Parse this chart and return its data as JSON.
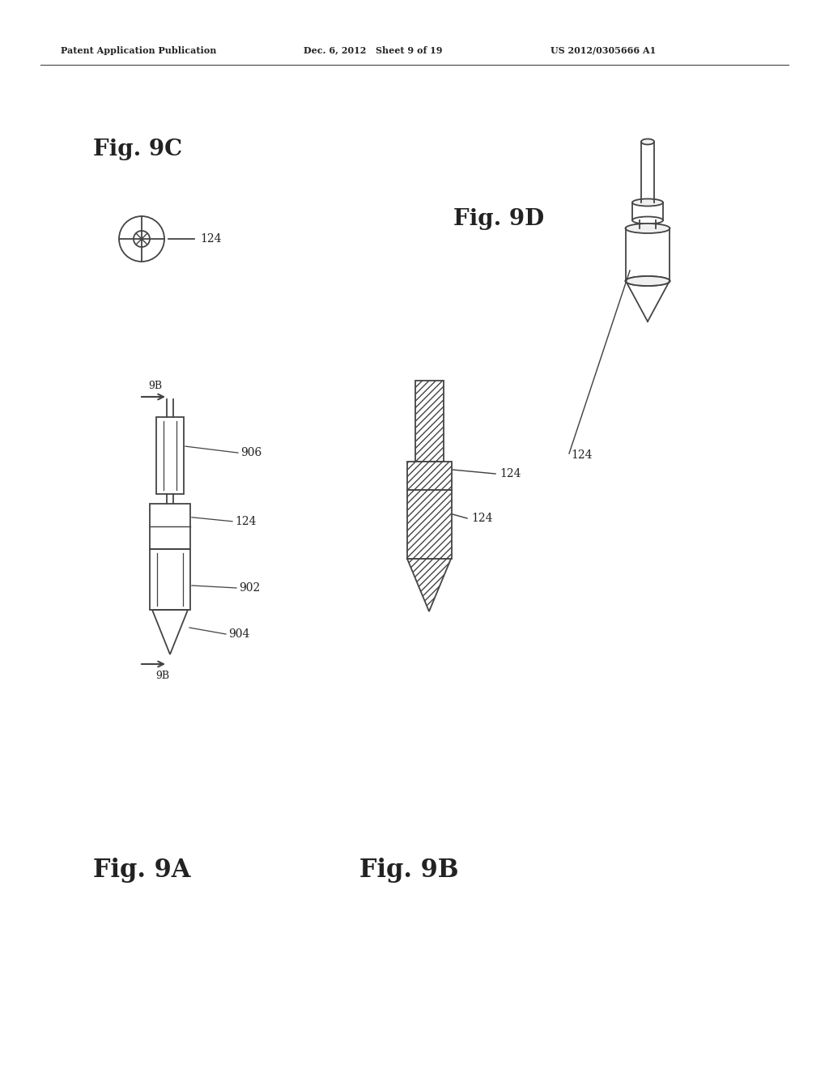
{
  "background_color": "#ffffff",
  "header_left": "Patent Application Publication",
  "header_mid": "Dec. 6, 2012   Sheet 9 of 19",
  "header_right": "US 2012/0305666 A1",
  "fig9c_label": "Fig. 9C",
  "fig9d_label": "Fig. 9D",
  "fig9a_label": "Fig. 9A",
  "fig9b_label": "Fig. 9B",
  "label_124": "124",
  "label_906": "906",
  "label_902": "902",
  "label_904": "904",
  "label_9b": "9B",
  "line_color": "#444444",
  "text_color": "#222222"
}
